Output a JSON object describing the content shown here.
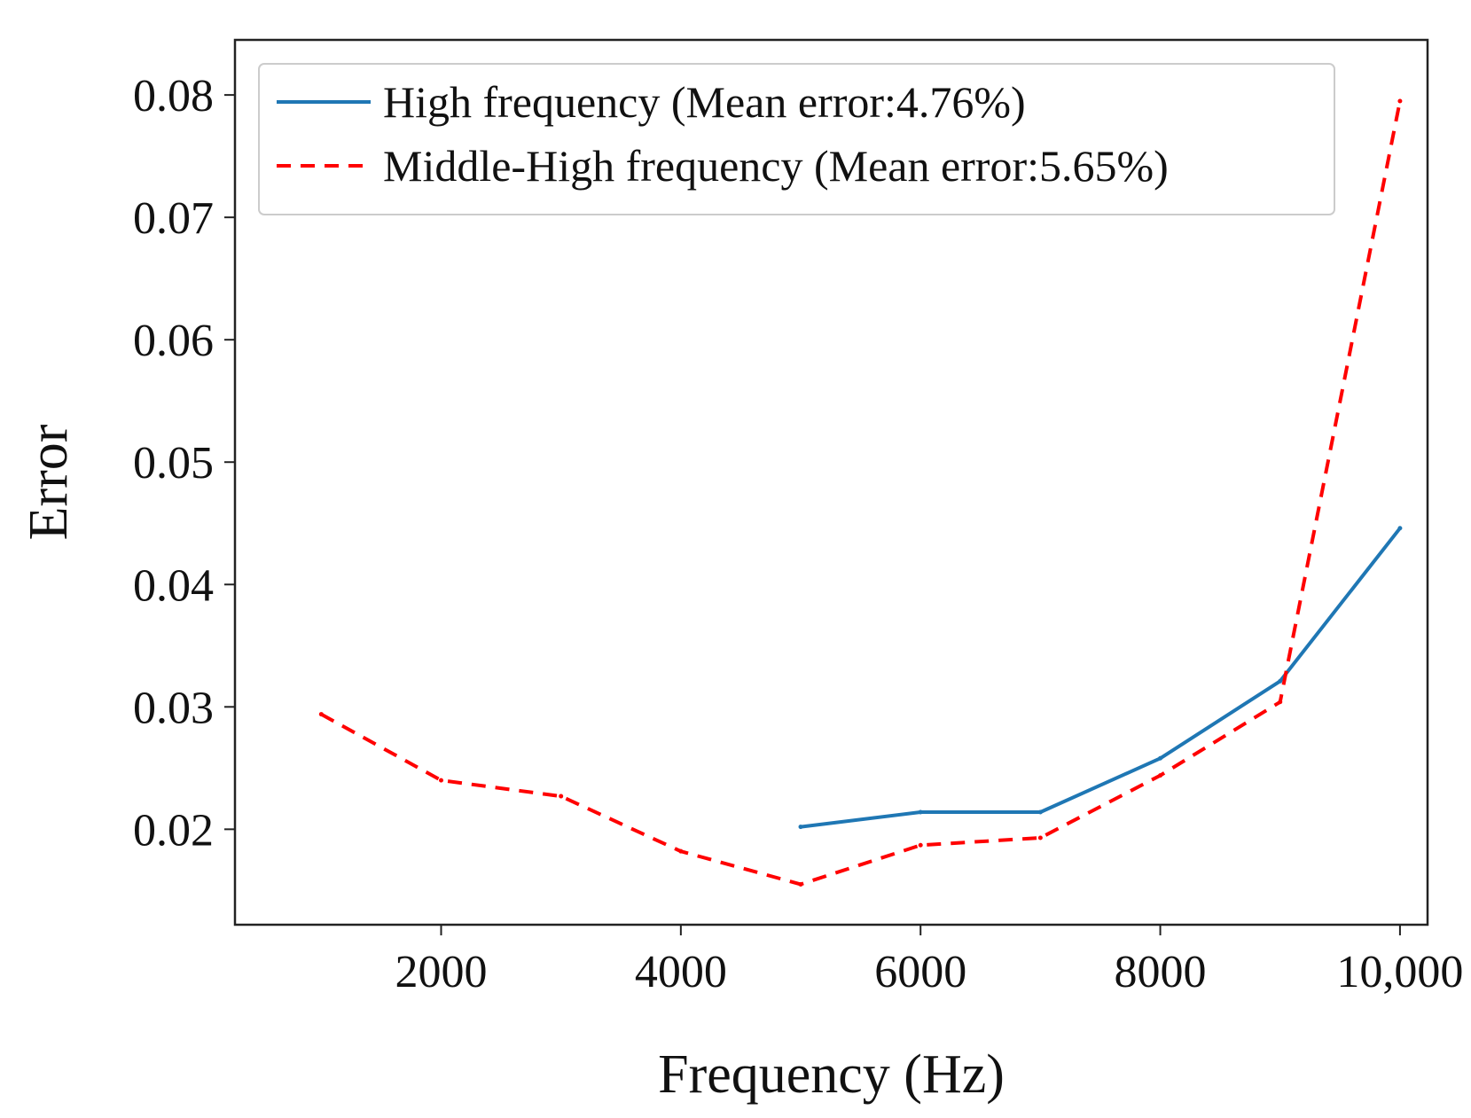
{
  "chart_data": {
    "type": "line",
    "title": "",
    "xlabel": "Frequency (Hz)",
    "ylabel": "Error",
    "xlim": [
      280,
      10230
    ],
    "ylim": [
      0.0122,
      0.0845
    ],
    "x_ticks": [
      {
        "value": 2000,
        "label": "2000"
      },
      {
        "value": 4000,
        "label": "4000"
      },
      {
        "value": 6000,
        "label": "6000"
      },
      {
        "value": 8000,
        "label": "8000"
      },
      {
        "value": 10000,
        "label": "10,000"
      }
    ],
    "y_ticks": [
      {
        "value": 0.02,
        "label": "0.02"
      },
      {
        "value": 0.03,
        "label": "0.03"
      },
      {
        "value": 0.04,
        "label": "0.04"
      },
      {
        "value": 0.05,
        "label": "0.05"
      },
      {
        "value": 0.06,
        "label": "0.06"
      },
      {
        "value": 0.07,
        "label": "0.07"
      },
      {
        "value": 0.08,
        "label": "0.08"
      }
    ],
    "grid": false,
    "legend_position": "top-left",
    "series": [
      {
        "name": "High frequency (Mean error:4.76%)",
        "color": "#1f77b4",
        "style": "solid",
        "x": [
          5000,
          6000,
          7000,
          8000,
          9000,
          10000
        ],
        "y": [
          0.0202,
          0.0214,
          0.0214,
          0.0258,
          0.0321,
          0.0446
        ]
      },
      {
        "name": "Middle-High frequency (Mean error:5.65%)",
        "color": "#ff0000",
        "style": "dashed",
        "x": [
          1000,
          2000,
          3000,
          4000,
          5000,
          6000,
          7000,
          8000,
          9000,
          10000
        ],
        "y": [
          0.0294,
          0.024,
          0.0227,
          0.0182,
          0.0155,
          0.0187,
          0.0193,
          0.0244,
          0.0304,
          0.0795
        ]
      }
    ]
  }
}
